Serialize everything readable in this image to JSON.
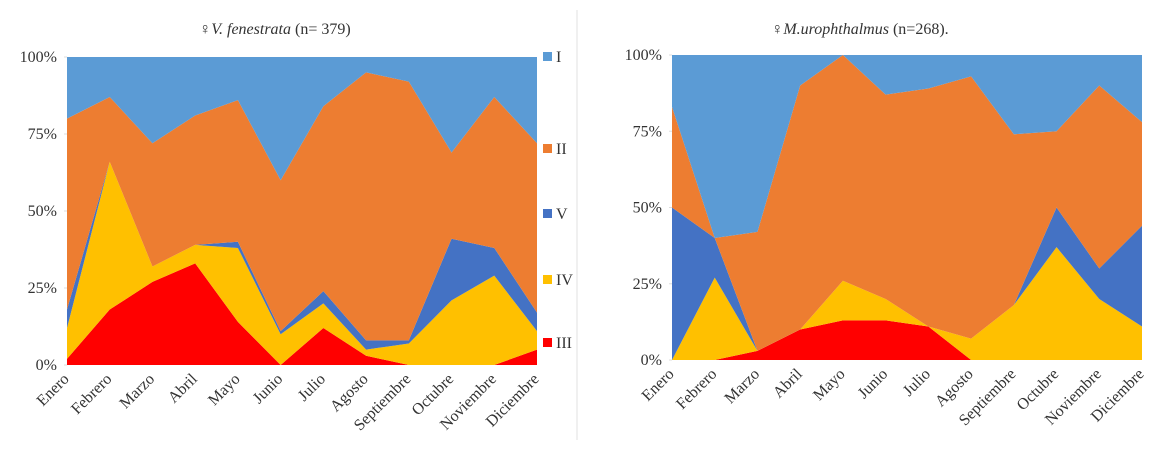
{
  "chart_data": [
    {
      "type": "area",
      "stacked": true,
      "title": [
        "♀",
        "V. fenestrata",
        "(n= 379)"
      ],
      "categories": [
        "Enero",
        "Febrero",
        "Marzo",
        "Abril",
        "Mayo",
        "Junio",
        "Julio",
        "Agosto",
        "Septiembre",
        "Octubre",
        "Noviembre",
        "Diciembre"
      ],
      "ylim": [
        0,
        100
      ],
      "yticks": [
        {
          "value": 0,
          "label": "0%"
        },
        {
          "value": 25,
          "label": "25%"
        },
        {
          "value": 50,
          "label": "50%"
        },
        {
          "value": 75,
          "label": "75%"
        },
        {
          "value": 100,
          "label": "100%"
        }
      ],
      "legend": true,
      "series": [
        {
          "name": "III",
          "color": "#ff0000",
          "values": [
            2,
            18,
            27,
            33,
            14,
            0,
            12,
            3,
            0,
            0,
            0,
            5
          ]
        },
        {
          "name": "IV",
          "color": "#ffc000",
          "values": [
            10,
            48,
            5,
            6,
            24,
            10,
            8,
            2,
            7,
            21,
            29,
            6
          ]
        },
        {
          "name": "V",
          "color": "#4472c4",
          "values": [
            6,
            0,
            0,
            0,
            2,
            1,
            4,
            3,
            1,
            20,
            9,
            6
          ]
        },
        {
          "name": "II",
          "color": "#ed7d31",
          "values": [
            62,
            21,
            40,
            42,
            46,
            49,
            60,
            87,
            84,
            28,
            49,
            55
          ]
        },
        {
          "name": "I",
          "color": "#5b9bd5",
          "values": [
            20,
            13,
            28,
            19,
            14,
            40,
            16,
            5,
            8,
            31,
            13,
            28
          ]
        }
      ]
    },
    {
      "type": "area",
      "stacked": true,
      "title": [
        "♀",
        "M.urophthalmus",
        "(n=268)."
      ],
      "categories": [
        "Enero",
        "Febrero",
        "Marzo",
        "Abril",
        "Mayo",
        "Junio",
        "Julio",
        "Agosto",
        "Septiembre",
        "Octubre",
        "Noviembre",
        "Diciembre"
      ],
      "ylim": [
        0,
        100
      ],
      "yticks": [
        {
          "value": 0,
          "label": "0%"
        },
        {
          "value": 25,
          "label": "25%"
        },
        {
          "value": 50,
          "label": "50%"
        },
        {
          "value": 75,
          "label": "75%"
        },
        {
          "value": 100,
          "label": "100%"
        }
      ],
      "legend": false,
      "series": [
        {
          "color": "#ff0000",
          "values": [
            0,
            0,
            3,
            10,
            13,
            13,
            11,
            0,
            0,
            0,
            0,
            0
          ]
        },
        {
          "color": "#ffc000",
          "values": [
            0,
            27,
            0,
            0,
            13,
            7,
            0,
            7,
            18,
            37,
            20,
            11
          ]
        },
        {
          "color": "#4472c4",
          "values": [
            50,
            13,
            0,
            0,
            0,
            0,
            0,
            0,
            0,
            13,
            10,
            33
          ]
        },
        {
          "color": "#ed7d31",
          "values": [
            33,
            0,
            39,
            80,
            74,
            67,
            78,
            86,
            56,
            25,
            60,
            34
          ]
        },
        {
          "color": "#5b9bd5",
          "values": [
            17,
            60,
            58,
            10,
            0,
            13,
            11,
            7,
            26,
            25,
            10,
            22
          ]
        }
      ]
    }
  ]
}
